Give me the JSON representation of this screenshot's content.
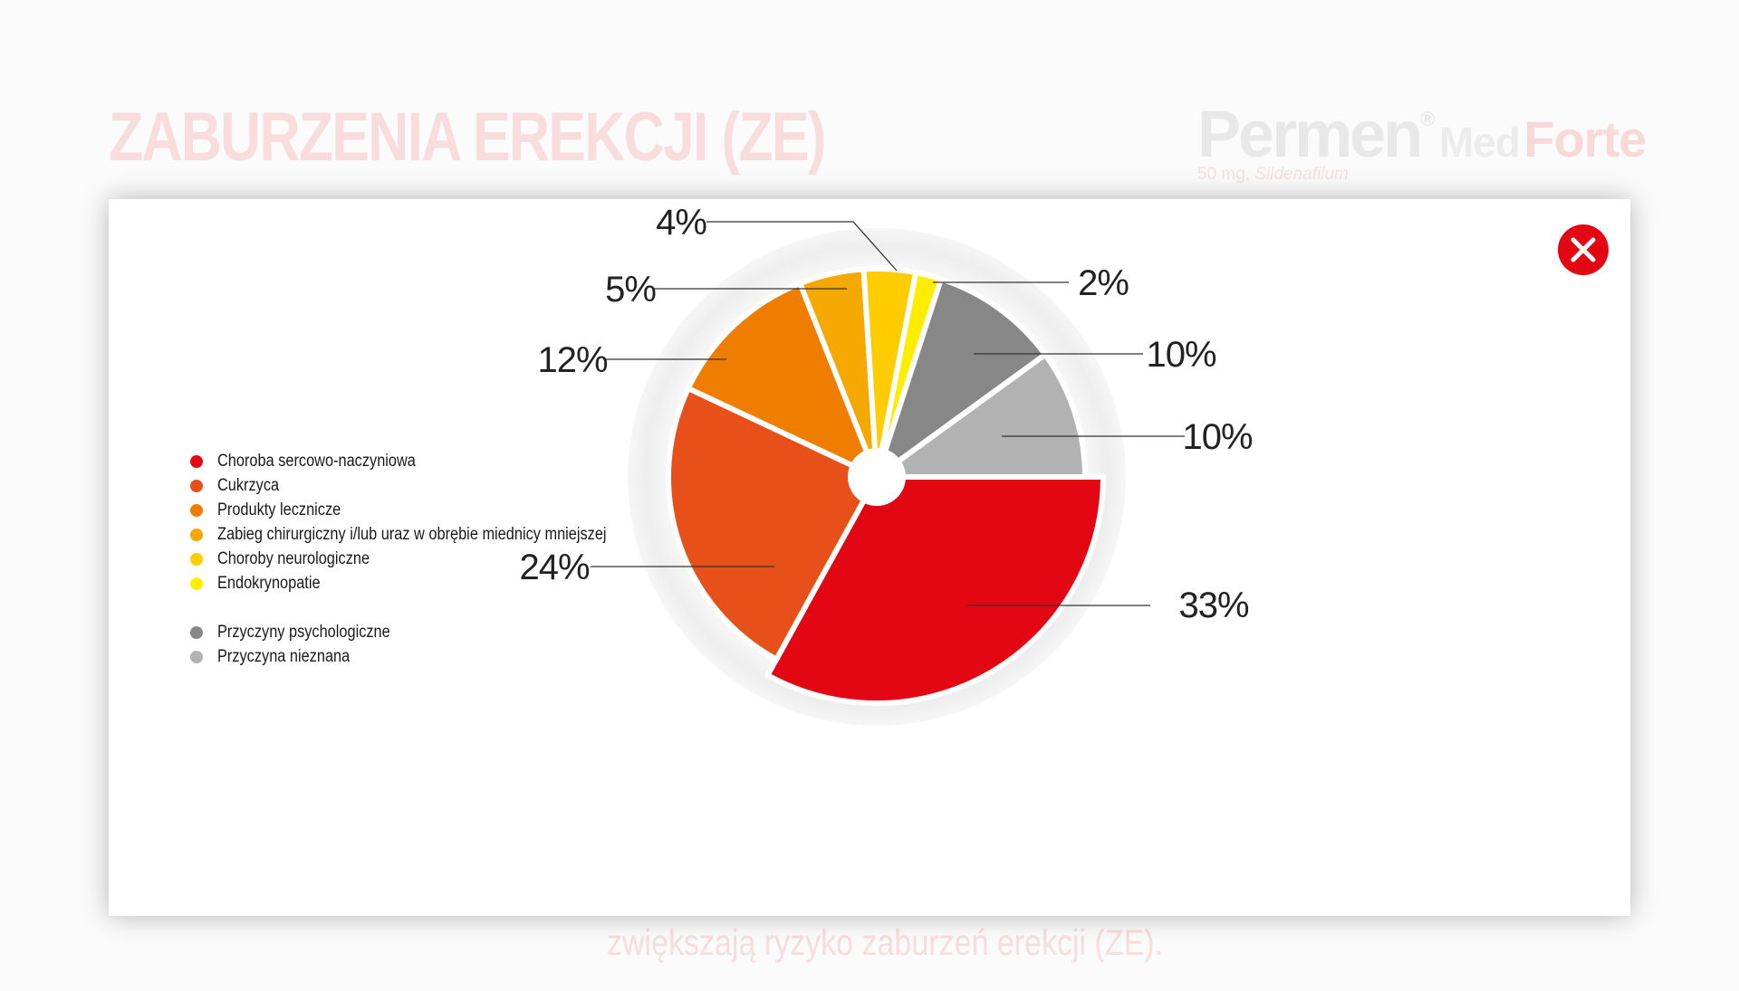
{
  "background": {
    "title": "ZABURZENIA EREKCJI (ZE)",
    "brand": {
      "name": "Permen",
      "reg": "®",
      "line": "Med",
      "variant": "Forte",
      "dose": "50 mg,",
      "substance": "Sildenafilum"
    },
    "footer_text": "zwiększają ryzyko zaburzeń erekcji (ZE)."
  },
  "modal": {
    "close_icon": "close-x-icon",
    "close_color": "#e30613"
  },
  "legend": {
    "items": [
      {
        "label": "Choroba sercowo-naczyniowa",
        "color": "#e30613"
      },
      {
        "label": "Cukrzyca",
        "color": "#e8501a"
      },
      {
        "label": "Produkty lecznicze",
        "color": "#ef7d00"
      },
      {
        "label": "Zabieg chirurgiczny i/lub uraz w obrębie miednicy mniejszej",
        "color": "#f5a800"
      },
      {
        "label": "Choroby neurologiczne",
        "color": "#ffcc00"
      },
      {
        "label": "Endokrynopatie",
        "color": "#ffed00"
      },
      {
        "label": "Przyczyny psychologiczne",
        "color": "#878787"
      },
      {
        "label": "Przyczyna nieznana",
        "color": "#b2b2b2"
      }
    ]
  },
  "chart_data": {
    "type": "pie",
    "categories": [
      "Choroba sercowo-naczyniowa",
      "Cukrzyca",
      "Produkty lecznicze",
      "Zabieg chirurgiczny i/lub uraz w obrębie miednicy mniejszej",
      "Choroby neurologiczne",
      "Endokrynopatie",
      "Przyczyny psychologiczne",
      "Przyczyna nieznana"
    ],
    "values": [
      33,
      24,
      12,
      5,
      4,
      2,
      10,
      10
    ],
    "labels": [
      "33%",
      "24%",
      "12%",
      "5%",
      "4%",
      "2%",
      "10%",
      "10%"
    ],
    "colors": [
      "#e30613",
      "#e8501a",
      "#ef7d00",
      "#f5a800",
      "#ffcc00",
      "#ffed00",
      "#878787",
      "#b2b2b2"
    ],
    "start": "3 o'clock, clockwise",
    "highlighted": [
      "Choroba sercowo-naczyniowa"
    ],
    "title": "",
    "legend_position": "left"
  }
}
